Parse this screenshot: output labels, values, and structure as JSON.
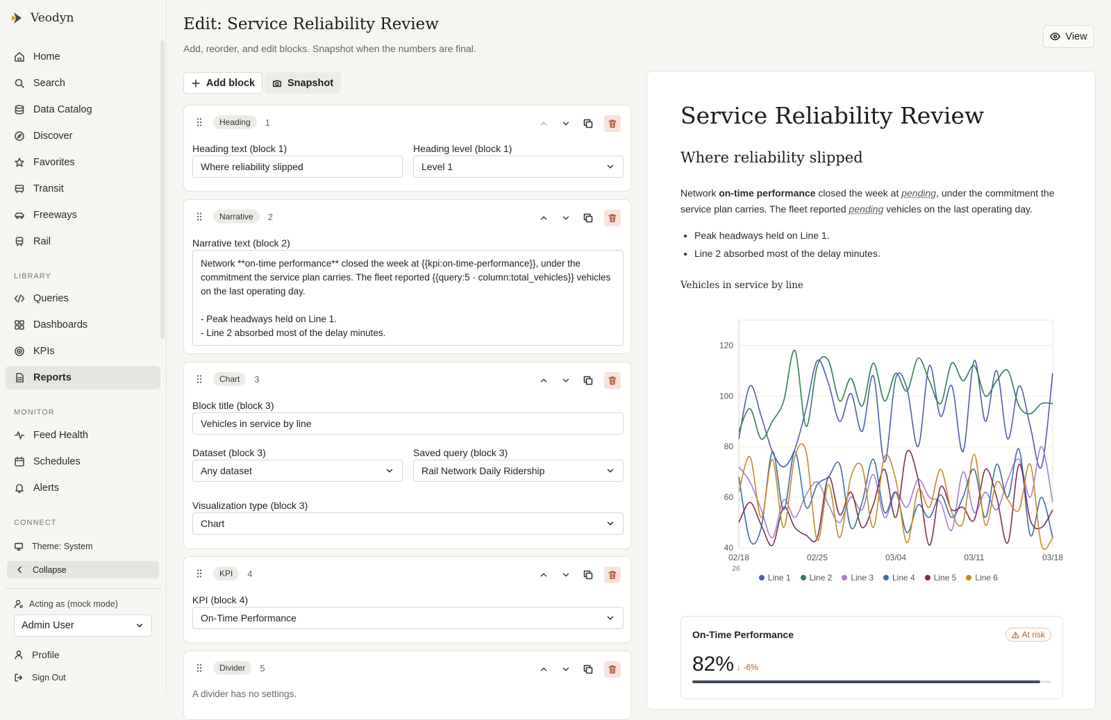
{
  "app": {
    "name": "Veodyn"
  },
  "sidebar": {
    "main": [
      {
        "label": "Home",
        "icon": "home-icon"
      },
      {
        "label": "Search",
        "icon": "search-icon"
      },
      {
        "label": "Data Catalog",
        "icon": "database-icon"
      },
      {
        "label": "Discover",
        "icon": "compass-icon"
      },
      {
        "label": "Favorites",
        "icon": "star-icon"
      },
      {
        "label": "Transit",
        "icon": "bus-icon"
      },
      {
        "label": "Freeways",
        "icon": "car-icon"
      },
      {
        "label": "Rail",
        "icon": "train-icon"
      }
    ],
    "library_label": "LIBRARY",
    "library": [
      {
        "label": "Queries",
        "icon": "code-icon"
      },
      {
        "label": "Dashboards",
        "icon": "grid-icon"
      },
      {
        "label": "KPIs",
        "icon": "target-icon"
      },
      {
        "label": "Reports",
        "icon": "document-icon",
        "active": true
      }
    ],
    "monitor_label": "MONITOR",
    "monitor": [
      {
        "label": "Feed Health",
        "icon": "pulse-icon"
      },
      {
        "label": "Schedules",
        "icon": "calendar-icon"
      },
      {
        "label": "Alerts",
        "icon": "bell-icon"
      }
    ],
    "connect_label": "CONNECT",
    "theme_label": "Theme: System",
    "collapse_label": "Collapse",
    "acting_label": "Acting as (mock mode)",
    "acting_user": "Admin User",
    "profile_label": "Profile",
    "signout_label": "Sign Out"
  },
  "header": {
    "title": "Edit: Service Reliability Review",
    "subtitle": "Add, reorder, and edit blocks. Snapshot when the numbers are final.",
    "view_label": "View",
    "add_block_label": "Add block",
    "snapshot_label": "Snapshot"
  },
  "blocks": {
    "b1": {
      "type": "Heading",
      "num": "1",
      "text_label": "Heading text (block 1)",
      "text_value": "Where reliability slipped",
      "level_label": "Heading level (block 1)",
      "level_value": "Level 1"
    },
    "b2": {
      "type": "Narrative",
      "num": "2",
      "text_label": "Narrative text (block 2)",
      "text_value": "Network **on-time performance** closed the week at {{kpi:on-time-performance}}, under the commitment the service plan carries. The fleet reported {{query:5 · column:total_vehicles}} vehicles on the last operating day.\n\n- Peak headways held on Line 1.\n- Line 2 absorbed most of the delay minutes."
    },
    "b3": {
      "type": "Chart",
      "num": "3",
      "title_label": "Block title (block 3)",
      "title_value": "Vehicles in service by line",
      "dataset_label": "Dataset (block 3)",
      "dataset_value": "Any dataset",
      "query_label": "Saved query (block 3)",
      "query_value": "Rail Network Daily Ridership",
      "viz_label": "Visualization type (block 3)",
      "viz_value": "Chart"
    },
    "b4": {
      "type": "KPI",
      "num": "4",
      "kpi_label": "KPI (block 4)",
      "kpi_value": "On-Time Performance"
    },
    "b5": {
      "type": "Divider",
      "num": "5",
      "note": "A divider has no settings."
    }
  },
  "preview": {
    "title": "Service Reliability Review",
    "heading": "Where reliability slipped",
    "para_1": "Network ",
    "para_bold": "on-time performance",
    "para_2": " closed the week at ",
    "pending_1": "pending",
    "para_3": ", under the commitment the service plan carries. The fleet reported ",
    "pending_2": "pending",
    "para_4": " vehicles on the last operating day.",
    "bullets": [
      "Peak headways held on Line 1.",
      "Line 2 absorbed most of the delay minutes."
    ],
    "chart_title": "Vehicles in service by line",
    "kpi": {
      "name": "On-Time Performance",
      "status": "At risk",
      "value": "82%",
      "delta": "-6%",
      "progress": 0.97
    }
  },
  "chart_data": {
    "type": "line",
    "title": "Vehicles in service by line",
    "x_ticks": [
      "02/18",
      "02/25",
      "03/04",
      "03/11",
      "03/18"
    ],
    "x_tick_sub": "26",
    "y_ticks": [
      40,
      60,
      80,
      100,
      120
    ],
    "ylim": [
      40,
      130
    ],
    "grid": true,
    "legend_position": "bottom",
    "x": [
      "02/18",
      "02/19",
      "02/20",
      "02/21",
      "02/22",
      "02/23",
      "02/24",
      "02/25",
      "02/26",
      "02/27",
      "02/28",
      "03/01",
      "03/02",
      "03/03",
      "03/04",
      "03/05",
      "03/06",
      "03/07",
      "03/08",
      "03/09",
      "03/10",
      "03/11",
      "03/12",
      "03/13",
      "03/14",
      "03/15",
      "03/16",
      "03/17",
      "03/18"
    ],
    "series": [
      {
        "name": "Line 1",
        "color": "#4a5ea8",
        "values": [
          83,
          104,
          92,
          78,
          72,
          79,
          95,
          114,
          105,
          90,
          101,
          86,
          108,
          74,
          107,
          103,
          80,
          112,
          92,
          104,
          78,
          114,
          90,
          110,
          83,
          104,
          88,
          72,
          109
        ]
      },
      {
        "name": "Line 2",
        "color": "#2f7d4f",
        "values": [
          86,
          95,
          83,
          90,
          98,
          118,
          88,
          112,
          114,
          98,
          107,
          96,
          113,
          98,
          109,
          102,
          115,
          106,
          97,
          113,
          106,
          112,
          100,
          106,
          110,
          96,
          93,
          97,
          97
        ]
      },
      {
        "name": "Line 3",
        "color": "#a680cc",
        "values": [
          72,
          66,
          55,
          44,
          59,
          52,
          61,
          66,
          57,
          50,
          60,
          55,
          69,
          52,
          62,
          56,
          67,
          60,
          58,
          47,
          70,
          54,
          62,
          55,
          67,
          75,
          60,
          80,
          58
        ]
      },
      {
        "name": "Line 4",
        "color": "#3a6ea5",
        "values": [
          68,
          43,
          48,
          78,
          55,
          78,
          56,
          65,
          68,
          73,
          48,
          58,
          75,
          54,
          62,
          46,
          57,
          52,
          61,
          52,
          60,
          71,
          52,
          73,
          60,
          79,
          45,
          60,
          44
        ]
      },
      {
        "name": "Line 5",
        "color": "#7a2f4f",
        "values": [
          50,
          58,
          49,
          41,
          56,
          48,
          45,
          44,
          68,
          53,
          62,
          48,
          57,
          71,
          52,
          78,
          67,
          41,
          64,
          55,
          56,
          51,
          71,
          60,
          42,
          73,
          51,
          48,
          55
        ]
      },
      {
        "name": "Line 6",
        "color": "#c48a26",
        "values": [
          62,
          76,
          52,
          75,
          48,
          76,
          78,
          43,
          65,
          44,
          68,
          72,
          48,
          76,
          67,
          42,
          63,
          56,
          71,
          54,
          50,
          77,
          49,
          66,
          59,
          55,
          73,
          41,
          44
        ]
      }
    ]
  }
}
